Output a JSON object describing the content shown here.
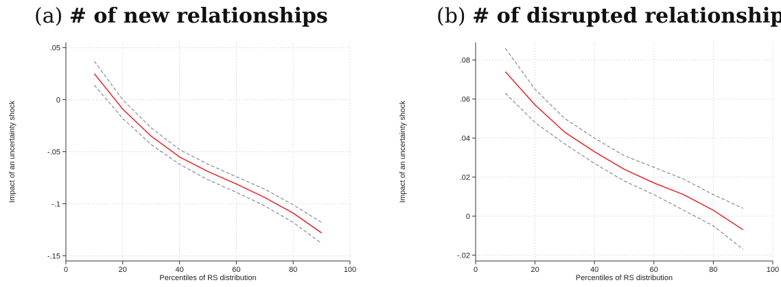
{
  "chart_data": [
    {
      "type": "line",
      "panel_label": "(a)",
      "title": "# of new relationships",
      "xlabel": "Percentiles of RS distribution",
      "ylabel": "Impact of an uncertainty shock",
      "xlim": [
        0,
        100
      ],
      "ylim": [
        -0.155,
        0.055
      ],
      "xticks": [
        0,
        20,
        40,
        60,
        80,
        100
      ],
      "xtick_labels": [
        "0",
        "20",
        "40",
        "60",
        "80",
        "100"
      ],
      "yticks": [
        0.05,
        0,
        -0.05,
        -0.1,
        -0.15
      ],
      "ytick_labels": [
        ".05",
        "0",
        "-.05",
        "-.1",
        "-.15"
      ],
      "grid": true,
      "x": [
        10,
        20,
        30,
        40,
        50,
        60,
        70,
        80,
        90
      ],
      "series": [
        {
          "role": "estimate",
          "color": "#e8151b",
          "dash": "solid",
          "values": [
            0.025,
            -0.009,
            -0.035,
            -0.055,
            -0.069,
            -0.081,
            -0.094,
            -0.109,
            -0.128
          ]
        },
        {
          "role": "upper-ci",
          "color": "#7d7d8a",
          "dash": "dashed",
          "values": [
            0.037,
            0.0,
            -0.027,
            -0.048,
            -0.062,
            -0.074,
            -0.086,
            -0.101,
            -0.118
          ]
        },
        {
          "role": "lower-ci",
          "color": "#7d7d8a",
          "dash": "dashed",
          "values": [
            0.014,
            -0.018,
            -0.043,
            -0.062,
            -0.077,
            -0.089,
            -0.102,
            -0.118,
            -0.138
          ]
        }
      ]
    },
    {
      "type": "line",
      "panel_label": "(b)",
      "title": "# of disrupted relationships",
      "xlabel": "Percentiles of RS distribution",
      "ylabel": "Impact of an uncertainty shock",
      "xlim": [
        0,
        100
      ],
      "ylim": [
        -0.023,
        0.089
      ],
      "xticks": [
        0,
        20,
        40,
        60,
        80,
        100
      ],
      "xtick_labels": [
        "0",
        "20",
        "40",
        "60",
        "80",
        "100"
      ],
      "yticks": [
        0.08,
        0.06,
        0.04,
        0.02,
        0,
        -0.02
      ],
      "ytick_labels": [
        ".08",
        ".06",
        ".04",
        ".02",
        "0",
        "-.02"
      ],
      "grid": true,
      "x": [
        10,
        20,
        30,
        40,
        50,
        60,
        70,
        80,
        90
      ],
      "series": [
        {
          "role": "estimate",
          "color": "#e8151b",
          "dash": "solid",
          "values": [
            0.074,
            0.057,
            0.043,
            0.033,
            0.024,
            0.017,
            0.011,
            0.003,
            -0.007
          ]
        },
        {
          "role": "upper-ci",
          "color": "#7d7d8a",
          "dash": "dashed",
          "values": [
            0.086,
            0.065,
            0.05,
            0.04,
            0.031,
            0.025,
            0.019,
            0.011,
            0.004
          ]
        },
        {
          "role": "lower-ci",
          "color": "#7d7d8a",
          "dash": "dashed",
          "values": [
            0.063,
            0.048,
            0.037,
            0.027,
            0.018,
            0.011,
            0.003,
            -0.005,
            -0.017
          ]
        }
      ]
    }
  ]
}
